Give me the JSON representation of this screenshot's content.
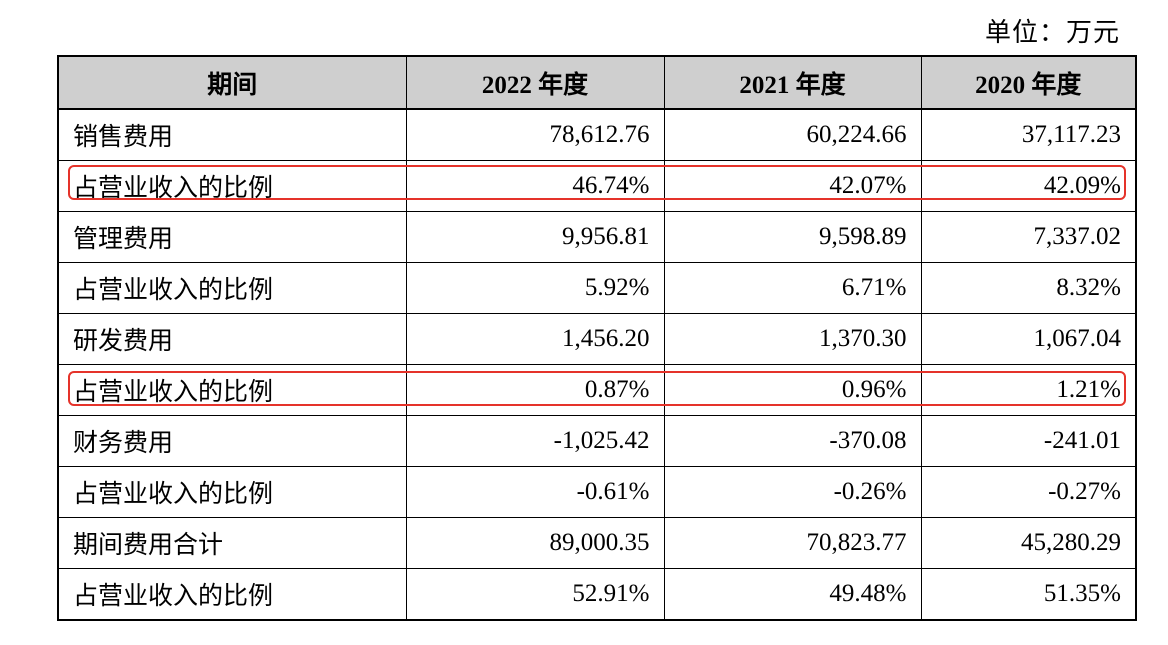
{
  "unit_label": "单位：万元",
  "headers": [
    "期间",
    "2022 年度",
    "2021 年度",
    "2020 年度"
  ],
  "rows": [
    {
      "label": "销售费用",
      "values": [
        "78,612.76",
        "60,224.66",
        "37,117.23"
      ],
      "highlighted": false
    },
    {
      "label": "占营业收入的比例",
      "values": [
        "46.74%",
        "42.07%",
        "42.09%"
      ],
      "highlighted": true
    },
    {
      "label": "管理费用",
      "values": [
        "9,956.81",
        "9,598.89",
        "7,337.02"
      ],
      "highlighted": false
    },
    {
      "label": "占营业收入的比例",
      "values": [
        "5.92%",
        "6.71%",
        "8.32%"
      ],
      "highlighted": false
    },
    {
      "label": "研发费用",
      "values": [
        "1,456.20",
        "1,370.30",
        "1,067.04"
      ],
      "highlighted": false
    },
    {
      "label": "占营业收入的比例",
      "values": [
        "0.87%",
        "0.96%",
        "1.21%"
      ],
      "highlighted": true
    },
    {
      "label": "财务费用",
      "values": [
        "-1,025.42",
        "-370.08",
        "-241.01"
      ],
      "highlighted": false
    },
    {
      "label": "占营业收入的比例",
      "values": [
        "-0.61%",
        "-0.26%",
        "-0.27%"
      ],
      "highlighted": false
    },
    {
      "label": "期间费用合计",
      "values": [
        "89,000.35",
        "70,823.77",
        "45,280.29"
      ],
      "highlighted": false
    },
    {
      "label": "占营业收入的比例",
      "values": [
        "52.91%",
        "49.48%",
        "51.35%"
      ],
      "highlighted": false
    }
  ],
  "highlight_color": "#e5332a",
  "header_background": "#cfcfcf"
}
